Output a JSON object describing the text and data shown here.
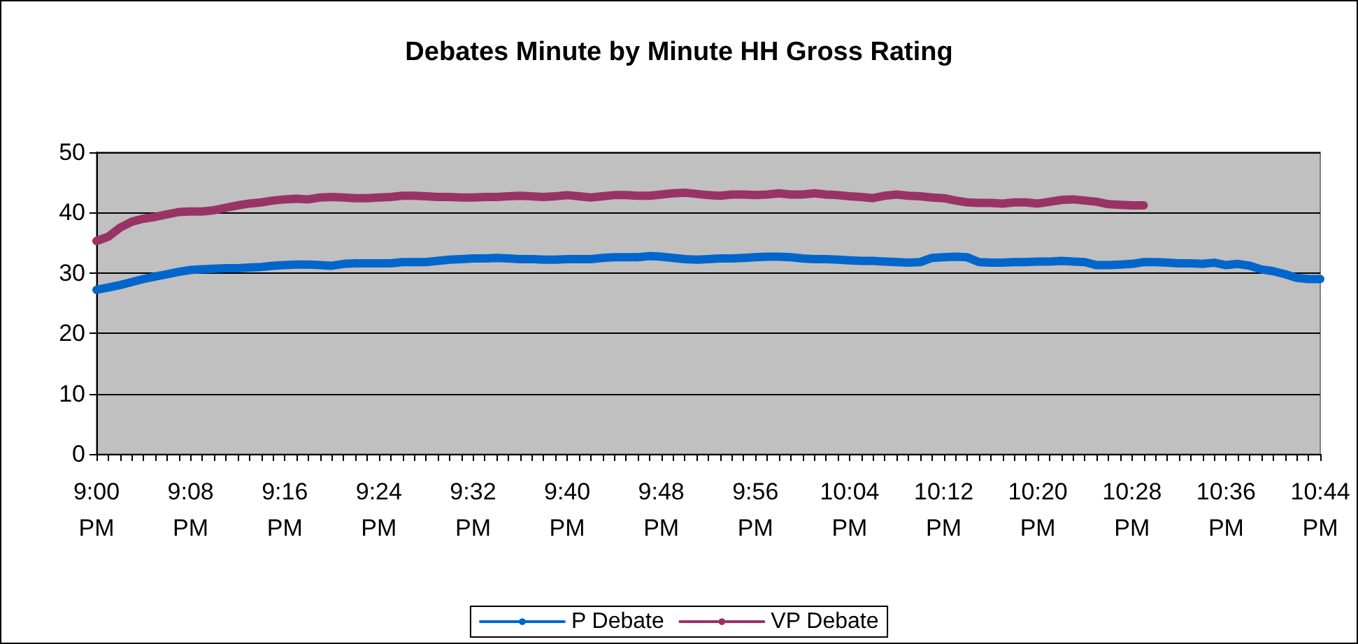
{
  "chart_data": {
    "type": "line",
    "title": "Debates Minute by Minute HH Gross Rating",
    "categories": [
      "9:00 PM",
      null,
      null,
      null,
      null,
      null,
      null,
      null,
      "9:08 PM",
      null,
      null,
      null,
      null,
      null,
      null,
      null,
      "9:16 PM",
      null,
      null,
      null,
      null,
      null,
      null,
      null,
      "9:24 PM",
      null,
      null,
      null,
      null,
      null,
      null,
      null,
      "9:32 PM",
      null,
      null,
      null,
      null,
      null,
      null,
      null,
      "9:40 PM",
      null,
      null,
      null,
      null,
      null,
      null,
      null,
      "9:48 PM",
      null,
      null,
      null,
      null,
      null,
      null,
      null,
      "9:56 PM",
      null,
      null,
      null,
      null,
      null,
      null,
      null,
      "10:04 PM",
      null,
      null,
      null,
      null,
      null,
      null,
      null,
      "10:12 PM",
      null,
      null,
      null,
      null,
      null,
      null,
      null,
      "10:20 PM",
      null,
      null,
      null,
      null,
      null,
      null,
      null,
      "10:28 PM",
      null,
      null,
      null,
      null,
      null,
      null,
      null,
      "10:36 PM",
      null,
      null,
      null,
      null,
      null,
      null,
      null,
      "10:44 PM"
    ],
    "series": [
      {
        "name": "P Debate",
        "color": "#0066cc",
        "values": [
          27.2,
          27.6,
          28.0,
          28.5,
          29.0,
          29.4,
          29.8,
          30.2,
          30.5,
          30.6,
          30.7,
          30.8,
          30.8,
          30.9,
          31.0,
          31.2,
          31.3,
          31.4,
          31.4,
          31.3,
          31.2,
          31.5,
          31.6,
          31.6,
          31.6,
          31.6,
          31.8,
          31.8,
          31.8,
          32.0,
          32.2,
          32.3,
          32.4,
          32.4,
          32.5,
          32.4,
          32.3,
          32.3,
          32.2,
          32.2,
          32.3,
          32.3,
          32.3,
          32.5,
          32.6,
          32.6,
          32.6,
          32.8,
          32.7,
          32.5,
          32.3,
          32.2,
          32.3,
          32.4,
          32.4,
          32.5,
          32.6,
          32.7,
          32.7,
          32.6,
          32.4,
          32.3,
          32.3,
          32.2,
          32.1,
          32.0,
          32.0,
          31.9,
          31.8,
          31.7,
          31.8,
          32.5,
          32.6,
          32.7,
          32.6,
          31.8,
          31.7,
          31.7,
          31.8,
          31.8,
          31.9,
          31.9,
          32.0,
          31.9,
          31.8,
          31.3,
          31.3,
          31.4,
          31.5,
          31.8,
          31.8,
          31.7,
          31.6,
          31.6,
          31.5,
          31.7,
          31.3,
          31.5,
          31.2,
          30.6,
          30.3,
          29.8,
          29.2,
          29.0,
          29.0
        ]
      },
      {
        "name": "VP Debate",
        "color": "#993366",
        "values": [
          35.3,
          36.0,
          37.5,
          38.5,
          39.0,
          39.3,
          39.7,
          40.1,
          40.2,
          40.2,
          40.4,
          40.8,
          41.2,
          41.5,
          41.7,
          42.0,
          42.2,
          42.3,
          42.2,
          42.5,
          42.6,
          42.5,
          42.4,
          42.4,
          42.5,
          42.6,
          42.8,
          42.8,
          42.7,
          42.6,
          42.6,
          42.5,
          42.5,
          42.6,
          42.6,
          42.7,
          42.8,
          42.7,
          42.6,
          42.7,
          42.9,
          42.7,
          42.5,
          42.7,
          42.9,
          42.9,
          42.8,
          42.8,
          43.0,
          43.2,
          43.3,
          43.1,
          42.9,
          42.8,
          43.0,
          43.0,
          42.9,
          43.0,
          43.2,
          43.0,
          43.0,
          43.2,
          43.0,
          42.9,
          42.7,
          42.6,
          42.4,
          42.8,
          43.0,
          42.8,
          42.7,
          42.5,
          42.4,
          42.0,
          41.7,
          41.6,
          41.6,
          41.5,
          41.7,
          41.7,
          41.5,
          41.8,
          42.1,
          42.2,
          42.0,
          41.8,
          41.4,
          41.3,
          41.2,
          41.2,
          null,
          null,
          null,
          null,
          null,
          null,
          null,
          null,
          null,
          null,
          null,
          null,
          null,
          null,
          null
        ]
      }
    ],
    "ylim": [
      0,
      50
    ],
    "yticks": [
      0,
      10,
      20,
      30,
      40,
      50
    ],
    "grid": "y",
    "legend": "bottom",
    "marker": "none",
    "line_style": "solid"
  }
}
